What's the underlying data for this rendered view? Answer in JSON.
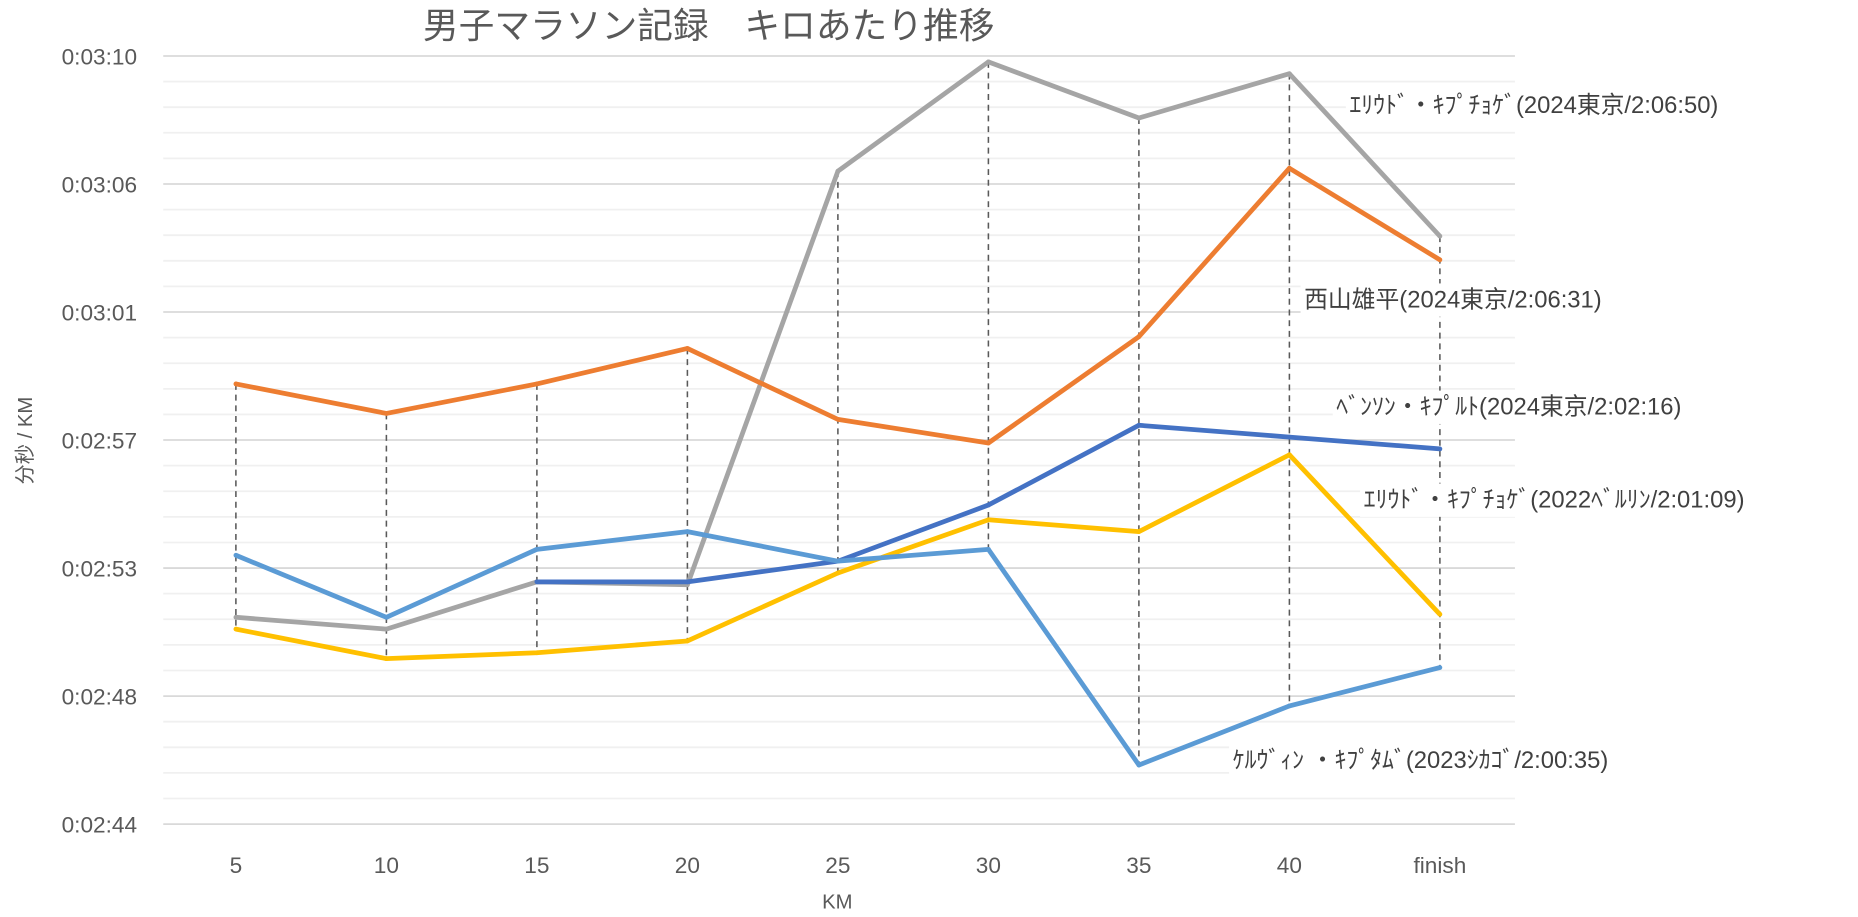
{
  "chart_data": {
    "type": "line",
    "title": "男子マラソン記録　キロあたり推移",
    "xlabel": "KM",
    "ylabel": "分秒 / KM",
    "categories": [
      "5",
      "10",
      "15",
      "20",
      "25",
      "30",
      "35",
      "40",
      "finish"
    ],
    "ylim_seconds": [
      164,
      190
    ],
    "y_ticks": [
      {
        "seconds": 164.2,
        "label": "0:02:44"
      },
      {
        "seconds": 168.5,
        "label": "0:02:48"
      },
      {
        "seconds": 172.8,
        "label": "0:02:53"
      },
      {
        "seconds": 177.1,
        "label": "0:02:57"
      },
      {
        "seconds": 181.4,
        "label": "0:03:01"
      },
      {
        "seconds": 185.7,
        "label": "0:03:06"
      },
      {
        "seconds": 190.0,
        "label": "0:03:10"
      }
    ],
    "minor_per_major": 5,
    "grid": true,
    "drop_lines": true,
    "series": [
      {
        "name": "ｴﾘｳﾄﾞ・ｷﾌﾟﾁｮｹﾞ(2024東京/2:06:50)",
        "color": "#a5a5a5",
        "values": [
          171.0,
          170.6,
          172.2,
          172.1,
          186.1,
          189.8,
          187.9,
          189.4,
          183.9
        ]
      },
      {
        "name": "西山雄平(2024東京/2:06:31)",
        "color": "#ed7d31",
        "values": [
          178.9,
          177.9,
          178.9,
          180.1,
          177.7,
          176.9,
          180.5,
          186.2,
          183.1
        ]
      },
      {
        "name": "ﾍﾞﾝｿﾝ・ｷﾌﾟﾙﾄ(2024東京/2:02:16)",
        "color": "#4472c4",
        "values": [
          null,
          null,
          172.2,
          172.2,
          172.9,
          174.8,
          177.5,
          177.1,
          176.7
        ]
      },
      {
        "name": "ｴﾘｳﾄﾞ・ｷﾌﾟﾁｮｹﾞ(2022ﾍﾞﾙﾘﾝ/2:01:09)",
        "color": "#ffc000",
        "values": [
          170.6,
          169.6,
          169.8,
          170.2,
          172.5,
          174.3,
          173.9,
          176.5,
          171.1
        ]
      },
      {
        "name": "ｹﾙｳﾞｨﾝ ・ｷﾌﾟﾀﾑﾞ(2023ｼｶｺﾞ/2:00:35)",
        "color": "#5b9bd5",
        "values": [
          173.1,
          171.0,
          173.3,
          173.9,
          172.9,
          173.3,
          166.0,
          168.0,
          169.3
        ]
      }
    ]
  }
}
